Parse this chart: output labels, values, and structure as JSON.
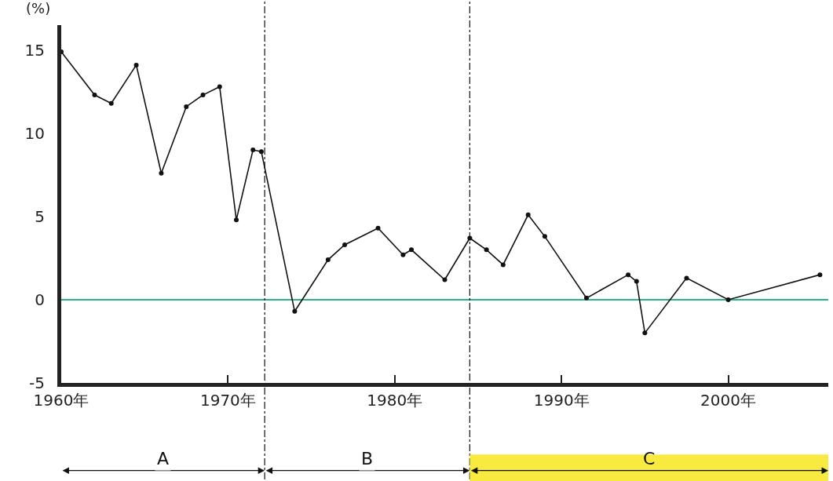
{
  "chart_data": {
    "type": "line",
    "ylabel": "(%)",
    "x": [
      1960,
      1962,
      1963,
      1964.5,
      1966,
      1967.5,
      1968.5,
      1969.5,
      1970.5,
      1971.5,
      1972,
      1974,
      1976,
      1977,
      1979,
      1980.5,
      1981,
      1983,
      1984.5,
      1985.5,
      1986.5,
      1988,
      1989,
      1991.5,
      1994,
      1994.5,
      1995,
      1997.5,
      2000,
      2005.5
    ],
    "series": [
      {
        "color": "#111111",
        "values": [
          14.9,
          12.3,
          11.8,
          14.1,
          7.6,
          11.6,
          12.3,
          12.8,
          4.8,
          9.0,
          8.9,
          -0.7,
          2.4,
          3.3,
          4.3,
          2.7,
          3.0,
          1.2,
          3.7,
          3.0,
          2.1,
          5.1,
          3.8,
          0.1,
          1.5,
          1.1,
          -2.0,
          1.3,
          0.0,
          1.5
        ]
      }
    ],
    "xlim": [
      1960,
      2006
    ],
    "ylim": [
      -5,
      16.5
    ],
    "xticks": [
      {
        "value": 1960,
        "label": "1960年"
      },
      {
        "value": 1970,
        "label": "1970年"
      },
      {
        "value": 1980,
        "label": "1980年"
      },
      {
        "value": 1990,
        "label": "1990年"
      },
      {
        "value": 2000,
        "label": "2000年"
      }
    ],
    "yticks": [
      -5,
      0,
      5,
      10,
      15
    ],
    "grid": false,
    "marker": "circle",
    "line_style": "solid",
    "ref_lines": [
      {
        "axis": "y",
        "value": 0,
        "color": "#2bb38a",
        "line_style": "solid"
      },
      {
        "axis": "x",
        "value": 1972.2,
        "color": "#222222",
        "line_style": "dashed"
      },
      {
        "axis": "x",
        "value": 1984.5,
        "color": "#222222",
        "line_style": "dashed"
      }
    ],
    "annotations": [
      "A",
      "B",
      "C"
    ]
  }
}
